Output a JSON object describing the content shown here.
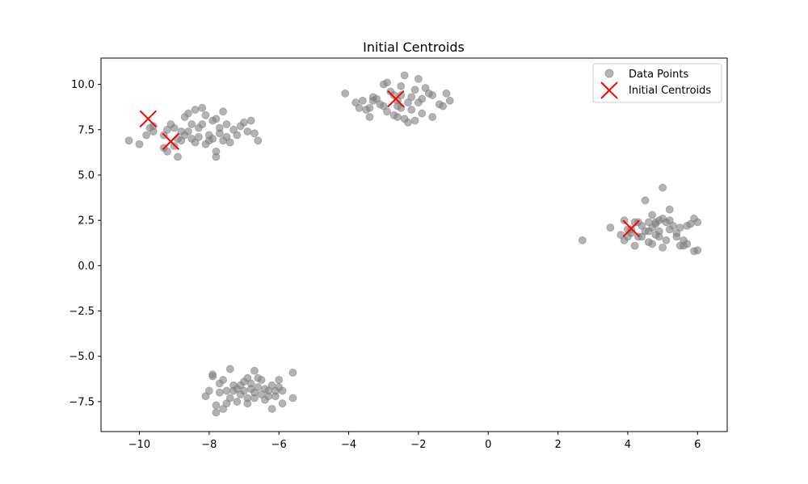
{
  "chart_data": {
    "type": "scatter",
    "title": "Initial Centroids",
    "xlabel": "",
    "ylabel": "",
    "xlim": [
      -11.1,
      6.85
    ],
    "ylim": [
      -9.15,
      11.45
    ],
    "x_ticks": [
      -10,
      -8,
      -6,
      -4,
      -2,
      0,
      2,
      4,
      6
    ],
    "x_tick_labels": [
      "−10",
      "−8",
      "−6",
      "−4",
      "−2",
      "0",
      "2",
      "4",
      "6"
    ],
    "y_ticks": [
      -7.5,
      -5.0,
      -2.5,
      0.0,
      2.5,
      5.0,
      7.5,
      10.0
    ],
    "y_tick_labels": [
      "−7.5",
      "−5.0",
      "−2.5",
      "0.0",
      "2.5",
      "5.0",
      "7.5",
      "10.0"
    ],
    "grid": false,
    "legend_position": "top-right",
    "colors": {
      "points": "#808080",
      "centroids": "#ff0000"
    },
    "series": [
      {
        "name": "Data Points",
        "marker": "circle",
        "alpha": 0.6,
        "points": [
          [
            -10.3,
            6.9
          ],
          [
            -10.0,
            6.7
          ],
          [
            -9.8,
            7.2
          ],
          [
            -9.7,
            7.6
          ],
          [
            -9.6,
            7.7
          ],
          [
            -9.6,
            7.4
          ],
          [
            -9.3,
            7.2
          ],
          [
            -9.3,
            6.5
          ],
          [
            -9.2,
            6.3
          ],
          [
            -9.2,
            7.5
          ],
          [
            -9.1,
            7.8
          ],
          [
            -9.0,
            7.6
          ],
          [
            -9.0,
            6.6
          ],
          [
            -8.9,
            6.0
          ],
          [
            -8.9,
            7.0
          ],
          [
            -8.8,
            6.9
          ],
          [
            -8.7,
            7.2
          ],
          [
            -8.7,
            8.2
          ],
          [
            -8.6,
            8.4
          ],
          [
            -8.6,
            7.4
          ],
          [
            -8.5,
            7.8
          ],
          [
            -8.5,
            7.0
          ],
          [
            -8.4,
            8.6
          ],
          [
            -8.4,
            6.8
          ],
          [
            -8.3,
            7.6
          ],
          [
            -8.3,
            7.1
          ],
          [
            -8.2,
            8.7
          ],
          [
            -8.2,
            7.8
          ],
          [
            -8.1,
            6.7
          ],
          [
            -8.1,
            8.3
          ],
          [
            -8.0,
            7.2
          ],
          [
            -8.0,
            6.9
          ],
          [
            -7.9,
            7.0
          ],
          [
            -7.9,
            8.0
          ],
          [
            -7.8,
            6.3
          ],
          [
            -7.8,
            6.0
          ],
          [
            -7.7,
            7.3
          ],
          [
            -7.7,
            7.6
          ],
          [
            -7.6,
            8.5
          ],
          [
            -7.6,
            6.9
          ],
          [
            -7.5,
            7.8
          ],
          [
            -7.5,
            7.1
          ],
          [
            -7.3,
            7.5
          ],
          [
            -7.2,
            7.2
          ],
          [
            -7.1,
            7.7
          ],
          [
            -7.0,
            7.9
          ],
          [
            -6.9,
            7.4
          ],
          [
            -6.8,
            8.0
          ],
          [
            -6.7,
            7.3
          ],
          [
            -6.6,
            6.9
          ],
          [
            -7.4,
            6.8
          ],
          [
            -8.8,
            7.4
          ],
          [
            -7.8,
            8.1
          ],
          [
            -4.1,
            9.5
          ],
          [
            -3.8,
            9.0
          ],
          [
            -3.7,
            8.7
          ],
          [
            -3.6,
            9.1
          ],
          [
            -3.5,
            8.6
          ],
          [
            -3.4,
            8.2
          ],
          [
            -3.3,
            9.3
          ],
          [
            -3.2,
            9.2
          ],
          [
            -3.1,
            8.9
          ],
          [
            -3.0,
            10.0
          ],
          [
            -2.9,
            8.5
          ],
          [
            -2.9,
            10.1
          ],
          [
            -2.8,
            9.6
          ],
          [
            -2.7,
            8.3
          ],
          [
            -2.6,
            8.8
          ],
          [
            -2.5,
            9.4
          ],
          [
            -2.5,
            9.9
          ],
          [
            -2.4,
            8.1
          ],
          [
            -2.4,
            10.5
          ],
          [
            -2.3,
            9.0
          ],
          [
            -2.3,
            7.9
          ],
          [
            -2.2,
            8.6
          ],
          [
            -2.1,
            9.7
          ],
          [
            -2.1,
            8.0
          ],
          [
            -2.0,
            10.3
          ],
          [
            -1.9,
            9.2
          ],
          [
            -1.9,
            8.4
          ],
          [
            -1.8,
            9.8
          ],
          [
            -1.7,
            9.5
          ],
          [
            -1.6,
            9.4
          ],
          [
            -1.6,
            8.2
          ],
          [
            -1.4,
            8.9
          ],
          [
            -1.3,
            8.8
          ],
          [
            -1.2,
            9.5
          ],
          [
            -1.1,
            9.1
          ],
          [
            -3.3,
            9.1
          ],
          [
            -2.7,
            9.4
          ],
          [
            -2.6,
            9.1
          ],
          [
            -2.2,
            9.3
          ],
          [
            -3.0,
            8.8
          ],
          [
            -2.6,
            8.2
          ],
          [
            -2.5,
            8.7
          ],
          [
            -3.4,
            8.7
          ],
          [
            -2.0,
            9.0
          ],
          [
            2.7,
            1.4
          ],
          [
            3.5,
            2.1
          ],
          [
            3.8,
            1.7
          ],
          [
            3.9,
            1.4
          ],
          [
            3.9,
            2.5
          ],
          [
            4.0,
            2.0
          ],
          [
            4.1,
            1.8
          ],
          [
            4.2,
            1.1
          ],
          [
            4.2,
            2.4
          ],
          [
            4.3,
            1.6
          ],
          [
            4.4,
            2.2
          ],
          [
            4.5,
            1.9
          ],
          [
            4.5,
            3.6
          ],
          [
            4.6,
            1.3
          ],
          [
            4.6,
            2.4
          ],
          [
            4.7,
            2.1
          ],
          [
            4.7,
            2.8
          ],
          [
            4.8,
            1.7
          ],
          [
            4.8,
            2.3
          ],
          [
            4.9,
            2.5
          ],
          [
            4.9,
            1.9
          ],
          [
            5.0,
            2.6
          ],
          [
            5.0,
            4.3
          ],
          [
            5.1,
            1.4
          ],
          [
            5.1,
            2.4
          ],
          [
            5.2,
            2.0
          ],
          [
            5.2,
            3.1
          ],
          [
            5.3,
            2.2
          ],
          [
            5.4,
            1.8
          ],
          [
            5.5,
            2.1
          ],
          [
            5.5,
            1.1
          ],
          [
            5.6,
            1.4
          ],
          [
            5.7,
            1.2
          ],
          [
            5.7,
            2.2
          ],
          [
            5.8,
            2.3
          ],
          [
            5.9,
            2.6
          ],
          [
            5.9,
            0.8
          ],
          [
            6.0,
            2.4
          ],
          [
            6.0,
            0.85
          ],
          [
            4.4,
            1.6
          ],
          [
            4.6,
            1.9
          ],
          [
            4.3,
            2.4
          ],
          [
            4.9,
            1.6
          ],
          [
            5.4,
            1.6
          ],
          [
            4.7,
            1.2
          ],
          [
            5.0,
            1.0
          ],
          [
            4.1,
            2.0
          ],
          [
            4.0,
            1.6
          ],
          [
            4.8,
            2.4
          ],
          [
            5.2,
            2.5
          ],
          [
            5.6,
            1.1
          ],
          [
            -8.1,
            -7.2
          ],
          [
            -8.0,
            -6.9
          ],
          [
            -7.9,
            -6.1
          ],
          [
            -7.8,
            -7.7
          ],
          [
            -7.7,
            -6.5
          ],
          [
            -7.6,
            -7.9
          ],
          [
            -7.5,
            -6.9
          ],
          [
            -7.4,
            -5.7
          ],
          [
            -7.4,
            -7.3
          ],
          [
            -7.3,
            -6.6
          ],
          [
            -7.2,
            -7.5
          ],
          [
            -7.1,
            -7.1
          ],
          [
            -7.0,
            -6.4
          ],
          [
            -6.9,
            -6.2
          ],
          [
            -6.9,
            -7.6
          ],
          [
            -6.8,
            -6.8
          ],
          [
            -6.7,
            -7.3
          ],
          [
            -6.7,
            -5.8
          ],
          [
            -6.6,
            -6.7
          ],
          [
            -6.5,
            -7.1
          ],
          [
            -6.5,
            -6.3
          ],
          [
            -6.4,
            -7.4
          ],
          [
            -6.3,
            -6.9
          ],
          [
            -6.2,
            -7.9
          ],
          [
            -6.2,
            -6.6
          ],
          [
            -6.1,
            -7.2
          ],
          [
            -6.0,
            -6.3
          ],
          [
            -5.9,
            -7.6
          ],
          [
            -5.9,
            -6.9
          ],
          [
            -5.6,
            -5.9
          ],
          [
            -5.6,
            -7.3
          ],
          [
            -7.9,
            -6.0
          ],
          [
            -7.6,
            -6.3
          ],
          [
            -7.3,
            -6.9
          ],
          [
            -7.1,
            -6.6
          ],
          [
            -6.9,
            -7.3
          ],
          [
            -6.6,
            -6.2
          ],
          [
            -6.3,
            -7.2
          ],
          [
            -6.1,
            -6.9
          ],
          [
            -7.0,
            -6.9
          ],
          [
            -7.2,
            -6.8
          ],
          [
            -6.8,
            -6.5
          ],
          [
            -6.4,
            -6.8
          ],
          [
            -7.5,
            -7.6
          ],
          [
            -7.8,
            -8.1
          ],
          [
            -6.7,
            -7.0
          ],
          [
            -6.0,
            -6.7
          ],
          [
            -7.7,
            -7.0
          ]
        ]
      },
      {
        "name": "Initial Centroids",
        "marker": "x",
        "points": [
          [
            -9.75,
            8.1
          ],
          [
            -9.1,
            6.85
          ],
          [
            -2.65,
            9.2
          ],
          [
            4.1,
            2.05
          ]
        ]
      }
    ]
  }
}
